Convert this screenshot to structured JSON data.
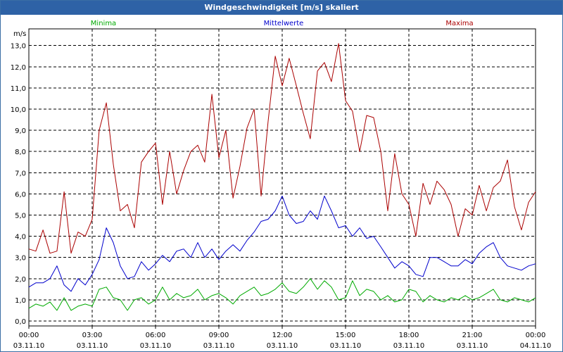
{
  "chart_data": {
    "type": "line",
    "title": "Windgeschwindigkeit [m/s] skaliert",
    "ylabel": "m/s",
    "xlabel": "",
    "ylim": [
      0,
      14
    ],
    "xlim": [
      0,
      24
    ],
    "grid": true,
    "y_ticks": [
      "0,0",
      "1,0",
      "2,0",
      "3,0",
      "4,0",
      "5,0",
      "6,0",
      "7,0",
      "8,0",
      "9,0",
      "10,0",
      "11,0",
      "12,0",
      "13,0"
    ],
    "x_ticks": [
      {
        "time": "00:00",
        "date": "03.11.10"
      },
      {
        "time": "03:00",
        "date": "03.11.10"
      },
      {
        "time": "06:00",
        "date": "03.11.10"
      },
      {
        "time": "09:00",
        "date": "03.11.10"
      },
      {
        "time": "12:00",
        "date": "03.11.10"
      },
      {
        "time": "15:00",
        "date": "03.11.10"
      },
      {
        "time": "18:00",
        "date": "03.11.10"
      },
      {
        "time": "21:00",
        "date": "03.11.10"
      },
      {
        "time": "00:00",
        "date": "04.11.10"
      }
    ],
    "series": [
      {
        "name": "Minima",
        "color": "#00aa00",
        "x": [
          0,
          0.33,
          0.67,
          1,
          1.33,
          1.67,
          2,
          2.33,
          2.67,
          3,
          3.33,
          3.67,
          4,
          4.33,
          4.67,
          5,
          5.33,
          5.67,
          6,
          6.33,
          6.67,
          7,
          7.33,
          7.67,
          8,
          8.33,
          8.67,
          9,
          9.33,
          9.67,
          10,
          10.33,
          10.67,
          11,
          11.33,
          11.67,
          12,
          12.33,
          12.67,
          13,
          13.33,
          13.67,
          14,
          14.33,
          14.67,
          15,
          15.33,
          15.67,
          16,
          16.33,
          16.67,
          17,
          17.33,
          17.67,
          18,
          18.33,
          18.67,
          19,
          19.33,
          19.67,
          20,
          20.33,
          20.67,
          21,
          21.33,
          21.67,
          22,
          22.33,
          22.67,
          23,
          23.33,
          23.67,
          24
        ],
        "values": [
          0.6,
          0.8,
          0.7,
          0.9,
          0.5,
          1.1,
          0.5,
          0.7,
          0.8,
          0.7,
          1.5,
          1.6,
          1.1,
          1.0,
          0.5,
          1.0,
          1.1,
          0.8,
          1.0,
          1.6,
          1.0,
          1.3,
          1.1,
          1.2,
          1.5,
          1.0,
          1.2,
          1.3,
          1.1,
          0.8,
          1.2,
          1.4,
          1.6,
          1.2,
          1.3,
          1.5,
          1.8,
          1.4,
          1.3,
          1.6,
          2.0,
          1.5,
          1.9,
          1.6,
          1.0,
          1.1,
          1.9,
          1.2,
          1.5,
          1.4,
          1.0,
          1.2,
          0.9,
          1.0,
          1.5,
          1.4,
          0.9,
          1.2,
          1.0,
          0.9,
          1.1,
          1.0,
          1.2,
          1.0,
          1.1,
          1.3,
          1.5,
          1.0,
          0.9,
          1.1,
          1.0,
          0.9,
          1.1
        ]
      },
      {
        "name": "Mittelwerte",
        "color": "#0000cc",
        "x": [
          0,
          0.33,
          0.67,
          1,
          1.33,
          1.67,
          2,
          2.33,
          2.67,
          3,
          3.33,
          3.67,
          4,
          4.33,
          4.67,
          5,
          5.33,
          5.67,
          6,
          6.33,
          6.67,
          7,
          7.33,
          7.67,
          8,
          8.33,
          8.67,
          9,
          9.33,
          9.67,
          10,
          10.33,
          10.67,
          11,
          11.33,
          11.67,
          12,
          12.33,
          12.67,
          13,
          13.33,
          13.67,
          14,
          14.33,
          14.67,
          15,
          15.33,
          15.67,
          16,
          16.33,
          16.67,
          17,
          17.33,
          17.67,
          18,
          18.33,
          18.67,
          19,
          19.33,
          19.67,
          20,
          20.33,
          20.67,
          21,
          21.33,
          21.67,
          22,
          22.33,
          22.67,
          23,
          23.33,
          23.67,
          24
        ],
        "values": [
          1.6,
          1.8,
          1.8,
          2.0,
          2.6,
          1.7,
          1.4,
          2.0,
          1.7,
          2.2,
          2.9,
          4.4,
          3.7,
          2.6,
          2.0,
          2.1,
          2.8,
          2.4,
          2.7,
          3.1,
          2.8,
          3.3,
          3.4,
          3.0,
          3.7,
          3.0,
          3.4,
          2.9,
          3.3,
          3.6,
          3.3,
          3.8,
          4.2,
          4.7,
          4.8,
          5.2,
          5.9,
          5.0,
          4.6,
          4.7,
          5.2,
          4.8,
          5.9,
          5.2,
          4.4,
          4.5,
          4.0,
          4.4,
          3.9,
          4.0,
          3.5,
          3.0,
          2.5,
          2.8,
          2.6,
          2.2,
          2.1,
          3.0,
          3.0,
          2.8,
          2.6,
          2.6,
          2.9,
          2.7,
          3.2,
          3.5,
          3.7,
          3.0,
          2.6,
          2.5,
          2.4,
          2.6,
          2.7
        ]
      },
      {
        "name": "Maxima",
        "color": "#aa0000",
        "x": [
          0,
          0.33,
          0.67,
          1,
          1.33,
          1.67,
          2,
          2.33,
          2.67,
          3,
          3.33,
          3.67,
          4,
          4.33,
          4.67,
          5,
          5.33,
          5.67,
          6,
          6.33,
          6.67,
          7,
          7.33,
          7.67,
          8,
          8.33,
          8.67,
          9,
          9.33,
          9.67,
          10,
          10.33,
          10.67,
          11,
          11.33,
          11.67,
          12,
          12.33,
          12.67,
          13,
          13.33,
          13.67,
          14,
          14.33,
          14.67,
          15,
          15.33,
          15.67,
          16,
          16.33,
          16.67,
          17,
          17.33,
          17.67,
          18,
          18.33,
          18.67,
          19,
          19.33,
          19.67,
          20,
          20.33,
          20.67,
          21,
          21.33,
          21.67,
          22,
          22.33,
          22.67,
          23,
          23.33,
          23.67,
          24
        ],
        "values": [
          3.4,
          3.3,
          4.3,
          3.2,
          3.3,
          6.1,
          3.2,
          4.2,
          4.0,
          4.8,
          9.0,
          10.3,
          7.4,
          5.2,
          5.5,
          4.4,
          7.5,
          8.0,
          8.4,
          5.5,
          8.0,
          6.0,
          7.1,
          8.0,
          8.3,
          7.5,
          10.7,
          7.7,
          9.0,
          5.8,
          7.3,
          9.1,
          10.0,
          5.9,
          9.4,
          12.5,
          11.1,
          12.4,
          11.1,
          9.8,
          8.6,
          11.8,
          12.2,
          11.3,
          13.1,
          10.4,
          9.9,
          8.0,
          9.7,
          9.6,
          8.0,
          5.2,
          7.9,
          6.0,
          5.5,
          4.0,
          6.5,
          5.5,
          6.6,
          6.2,
          5.5,
          4.0,
          5.3,
          5.0,
          6.4,
          5.2,
          6.3,
          6.6,
          7.6,
          5.4,
          4.3,
          5.6,
          6.1
        ]
      }
    ]
  }
}
